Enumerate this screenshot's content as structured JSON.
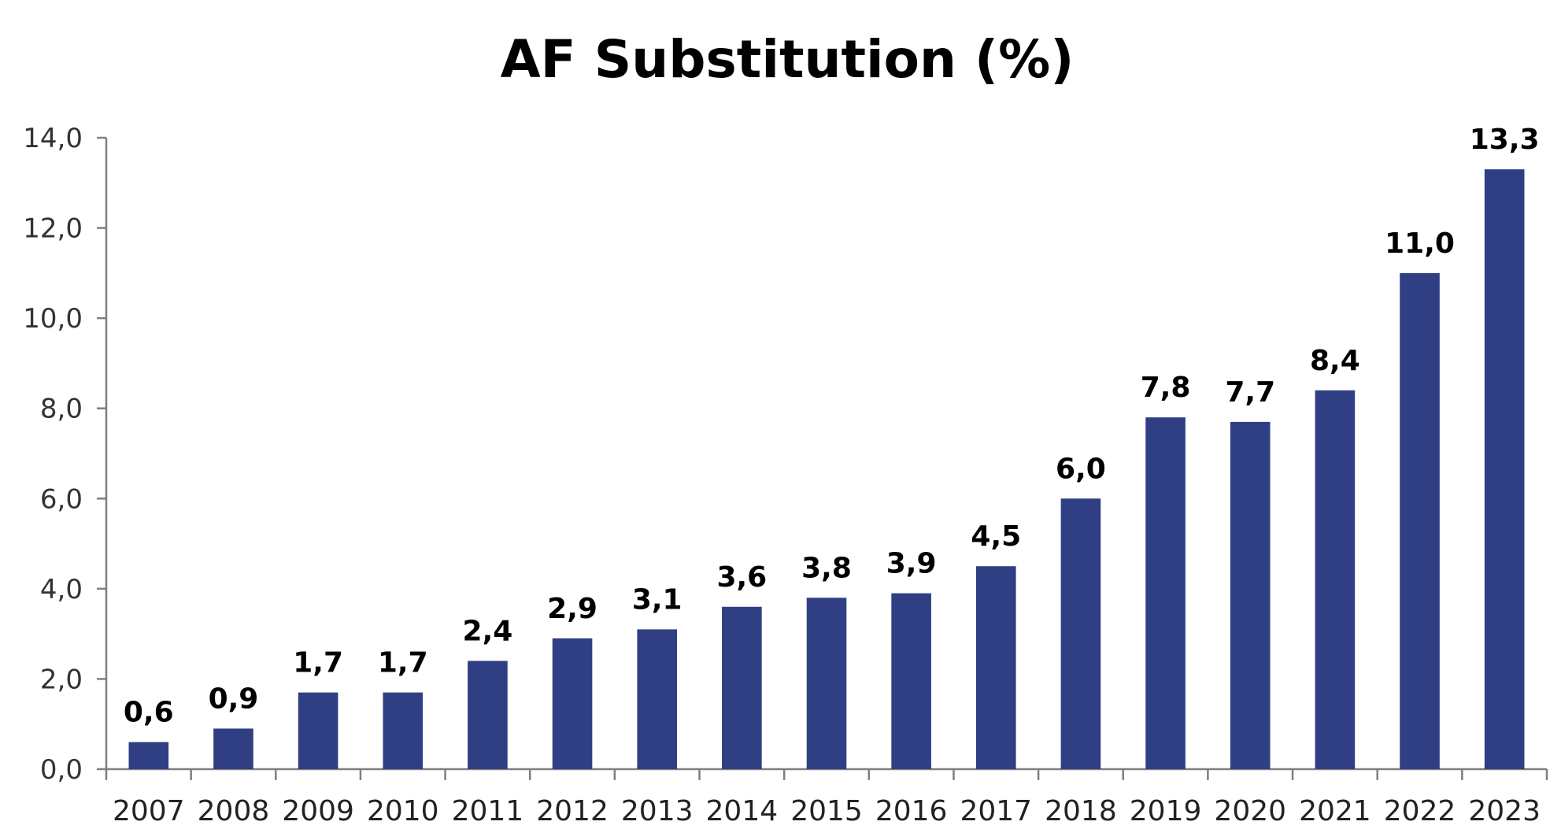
{
  "chart_data": {
    "type": "bar",
    "title": "AF Substitution (%)",
    "xlabel": "",
    "ylabel": "",
    "categories": [
      "2007",
      "2008",
      "2009",
      "2010",
      "2011",
      "2012",
      "2013",
      "2014",
      "2015",
      "2016",
      "2017",
      "2018",
      "2019",
      "2020",
      "2021",
      "2022",
      "2023"
    ],
    "values": [
      0.6,
      0.9,
      1.7,
      1.7,
      2.4,
      2.9,
      3.1,
      3.6,
      3.8,
      3.9,
      4.5,
      6.0,
      7.8,
      7.7,
      8.4,
      11.0,
      13.3
    ],
    "data_labels": [
      "0,6",
      "0,9",
      "1,7",
      "1,7",
      "2,4",
      "2,9",
      "3,1",
      "3,6",
      "3,8",
      "3,9",
      "4,5",
      "6,0",
      "7,8",
      "7,7",
      "8,4",
      "11,0",
      "13,3"
    ],
    "ylim": [
      0,
      14
    ],
    "yticks": [
      0,
      2,
      4,
      6,
      8,
      10,
      12,
      14
    ],
    "ytick_labels": [
      "0,0",
      "2,0",
      "4,0",
      "6,0",
      "8,0",
      "10,0",
      "12,0",
      "14,0"
    ],
    "grid": false,
    "legend": "none",
    "bar_color": "#303f84"
  }
}
